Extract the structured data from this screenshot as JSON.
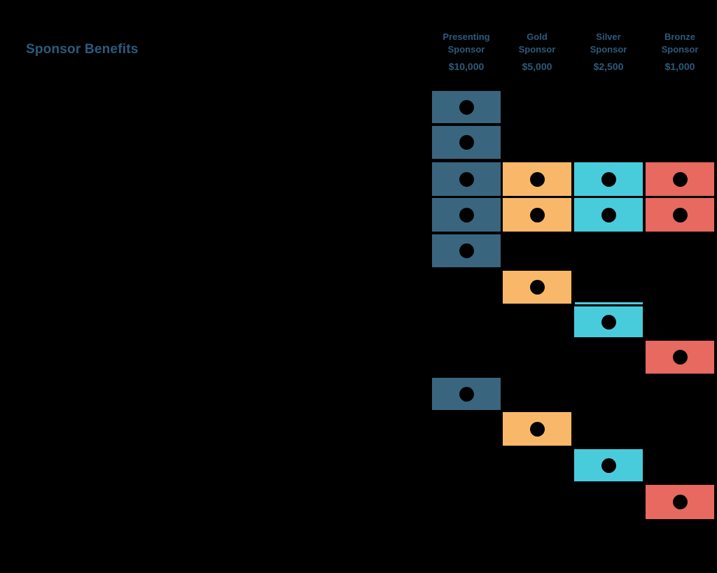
{
  "page": {
    "title": "Sponsor Benefits",
    "background_color": "#000000",
    "heading_text_color": "#2d5a7b",
    "dot_color": "#000000"
  },
  "columns": [
    {
      "id": "presenting",
      "line1": "Presenting",
      "line2": "Sponsor",
      "price": "$10,000",
      "color": "#3a657f"
    },
    {
      "id": "gold",
      "line1": "Gold",
      "line2": "Sponsor",
      "price": "$5,000",
      "color": "#f9b869"
    },
    {
      "id": "silver",
      "line1": "Silver",
      "line2": "Sponsor",
      "price": "$2,500",
      "color": "#48ccdc"
    },
    {
      "id": "bronze",
      "line1": "Bronze",
      "line2": "Sponsor",
      "price": "$1,000",
      "color": "#e7695f"
    }
  ],
  "grid": {
    "rows": [
      {
        "cells": [
          1,
          0,
          0,
          0
        ]
      },
      {
        "cells": [
          1,
          0,
          0,
          0
        ]
      },
      {
        "cells": [
          1,
          1,
          1,
          1
        ]
      },
      {
        "cells": [
          1,
          1,
          1,
          1
        ]
      },
      {
        "cells": [
          1,
          0,
          0,
          0
        ]
      },
      {
        "cells": [
          0,
          1,
          0,
          0
        ]
      },
      {
        "cells": [
          0,
          0,
          1,
          0
        ],
        "top_line_col": 2
      },
      {
        "cells": [
          0,
          0,
          0,
          1
        ]
      },
      {
        "cells": [
          1,
          0,
          0,
          0
        ]
      },
      {
        "cells": [
          0,
          1,
          0,
          0
        ]
      },
      {
        "cells": [
          0,
          0,
          1,
          0
        ]
      },
      {
        "cells": [
          0,
          0,
          0,
          1
        ]
      }
    ]
  },
  "chart_data": {
    "type": "table",
    "title": "Sponsor Benefits",
    "columns": [
      "Presenting Sponsor $10,000",
      "Gold Sponsor $5,000",
      "Silver Sponsor $2,500",
      "Bronze Sponsor $1,000"
    ],
    "tier_prices": {
      "Presenting": 10000,
      "Gold": 5000,
      "Silver": 2500,
      "Bronze": 1000
    },
    "benefit_matrix": [
      [
        1,
        0,
        0,
        0
      ],
      [
        1,
        0,
        0,
        0
      ],
      [
        1,
        1,
        1,
        1
      ],
      [
        1,
        1,
        1,
        1
      ],
      [
        1,
        0,
        0,
        0
      ],
      [
        0,
        1,
        0,
        0
      ],
      [
        0,
        0,
        1,
        0
      ],
      [
        0,
        0,
        0,
        1
      ],
      [
        1,
        0,
        0,
        0
      ],
      [
        0,
        1,
        0,
        0
      ],
      [
        0,
        0,
        1,
        0
      ],
      [
        0,
        0,
        0,
        1
      ]
    ],
    "cell_marker": "filled black dot",
    "legend_position": "none",
    "grid": false
  }
}
